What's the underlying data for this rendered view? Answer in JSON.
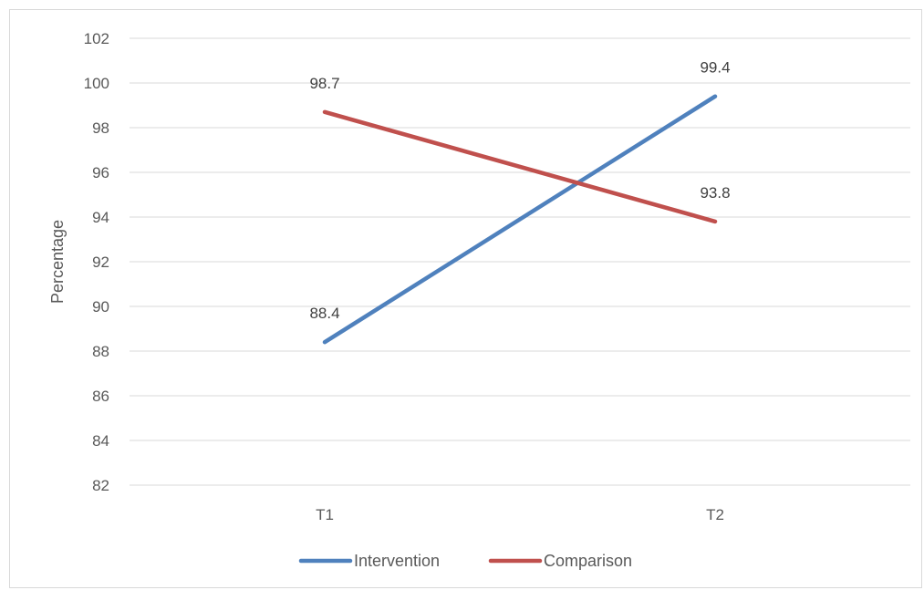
{
  "chart_data": {
    "type": "line",
    "categories": [
      "T1",
      "T2"
    ],
    "series": [
      {
        "name": "Intervention",
        "color": "#4F81BD",
        "values": [
          88.4,
          99.4
        ]
      },
      {
        "name": "Comparison",
        "color": "#C0504D",
        "values": [
          98.7,
          93.8
        ]
      }
    ],
    "title": "",
    "xlabel": "",
    "ylabel": "Percentage",
    "ylim": [
      82,
      102
    ],
    "ytick_step": 2,
    "yticks": [
      "82",
      "84",
      "86",
      "88",
      "90",
      "92",
      "94",
      "96",
      "98",
      "100",
      "102"
    ],
    "data_labels": [
      [
        "88.4",
        "99.4"
      ],
      [
        "98.7",
        "93.8"
      ]
    ],
    "grid": true,
    "legend_position": "bottom"
  }
}
